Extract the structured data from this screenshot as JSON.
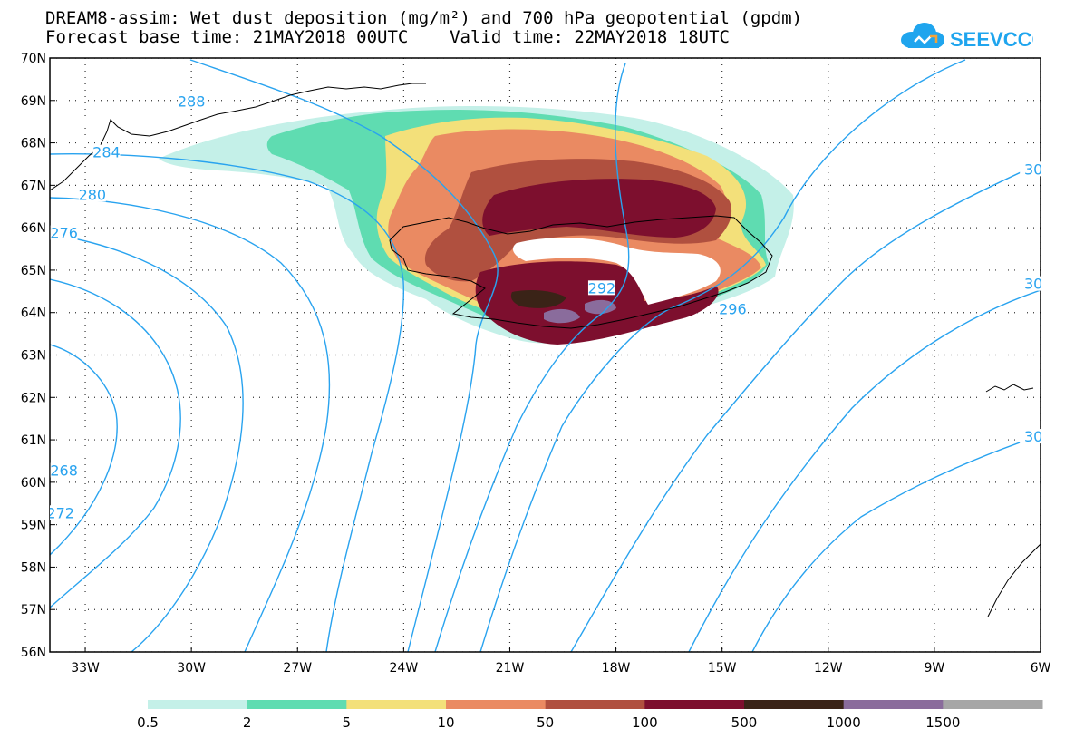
{
  "header": {
    "title_line1": "DREAM8-assim: Wet dust deposition (mg/m²) and 700 hPa geopotential (gpdm)",
    "title_line2": "Forecast base time: 21MAY2018 00UTC    Valid time: 22MAY2018 18UTC",
    "logo_text": "SEEVCCC",
    "logo_color": "#1fa5ee"
  },
  "map": {
    "lon_range": [
      -34,
      -6
    ],
    "lat_range": [
      56,
      70
    ],
    "lon_ticks": [
      {
        "value": -33,
        "label": "33W"
      },
      {
        "value": -30,
        "label": "30W"
      },
      {
        "value": -27,
        "label": "27W"
      },
      {
        "value": -24,
        "label": "24W"
      },
      {
        "value": -21,
        "label": "21W"
      },
      {
        "value": -18,
        "label": "18W"
      },
      {
        "value": -15,
        "label": "15W"
      },
      {
        "value": -12,
        "label": "12W"
      },
      {
        "value": -9,
        "label": "9W"
      },
      {
        "value": -6,
        "label": "6W"
      }
    ],
    "lat_ticks": [
      {
        "value": 70,
        "label": "70N"
      },
      {
        "value": 69,
        "label": "69N"
      },
      {
        "value": 68,
        "label": "68N"
      },
      {
        "value": 67,
        "label": "67N"
      },
      {
        "value": 66,
        "label": "66N"
      },
      {
        "value": 65,
        "label": "65N"
      },
      {
        "value": 64,
        "label": "64N"
      },
      {
        "value": 63,
        "label": "63N"
      },
      {
        "value": 62,
        "label": "62N"
      },
      {
        "value": 61,
        "label": "61N"
      },
      {
        "value": 60,
        "label": "60N"
      },
      {
        "value": 59,
        "label": "59N"
      },
      {
        "value": 58,
        "label": "58N"
      },
      {
        "value": 57,
        "label": "57N"
      },
      {
        "value": 56,
        "label": "56N"
      }
    ],
    "grid": "dotted",
    "contour_color": "#29a3ef",
    "coast_color": "#000000",
    "contour_labels": [
      {
        "text": "288",
        "lon": -30.0,
        "lat": 68.9
      },
      {
        "text": "284",
        "lon": -32.4,
        "lat": 67.7
      },
      {
        "text": "280",
        "lon": -32.8,
        "lat": 66.7
      },
      {
        "text": "276",
        "lon": -33.6,
        "lat": 65.8
      },
      {
        "text": "268",
        "lon": -33.6,
        "lat": 60.2
      },
      {
        "text": "272",
        "lon": -33.7,
        "lat": 59.2
      },
      {
        "text": "292",
        "lon": -18.4,
        "lat": 64.5
      },
      {
        "text": "296",
        "lon": -14.7,
        "lat": 64.0
      },
      {
        "text": "30",
        "lon": -6.2,
        "lat": 67.3
      },
      {
        "text": "30",
        "lon": -6.2,
        "lat": 64.6
      },
      {
        "text": "30",
        "lon": -6.2,
        "lat": 61.0
      }
    ]
  },
  "colorbar": {
    "colors": [
      "#c4f0e8",
      "#5fdcb1",
      "#f3e07a",
      "#ea8a62",
      "#b0503f",
      "#7d0f2e",
      "#3a2317",
      "#8a6c9c",
      "#a6a6a6"
    ],
    "labels": [
      "0.5",
      "2",
      "5",
      "10",
      "50",
      "100",
      "500",
      "1000",
      "1500"
    ]
  }
}
